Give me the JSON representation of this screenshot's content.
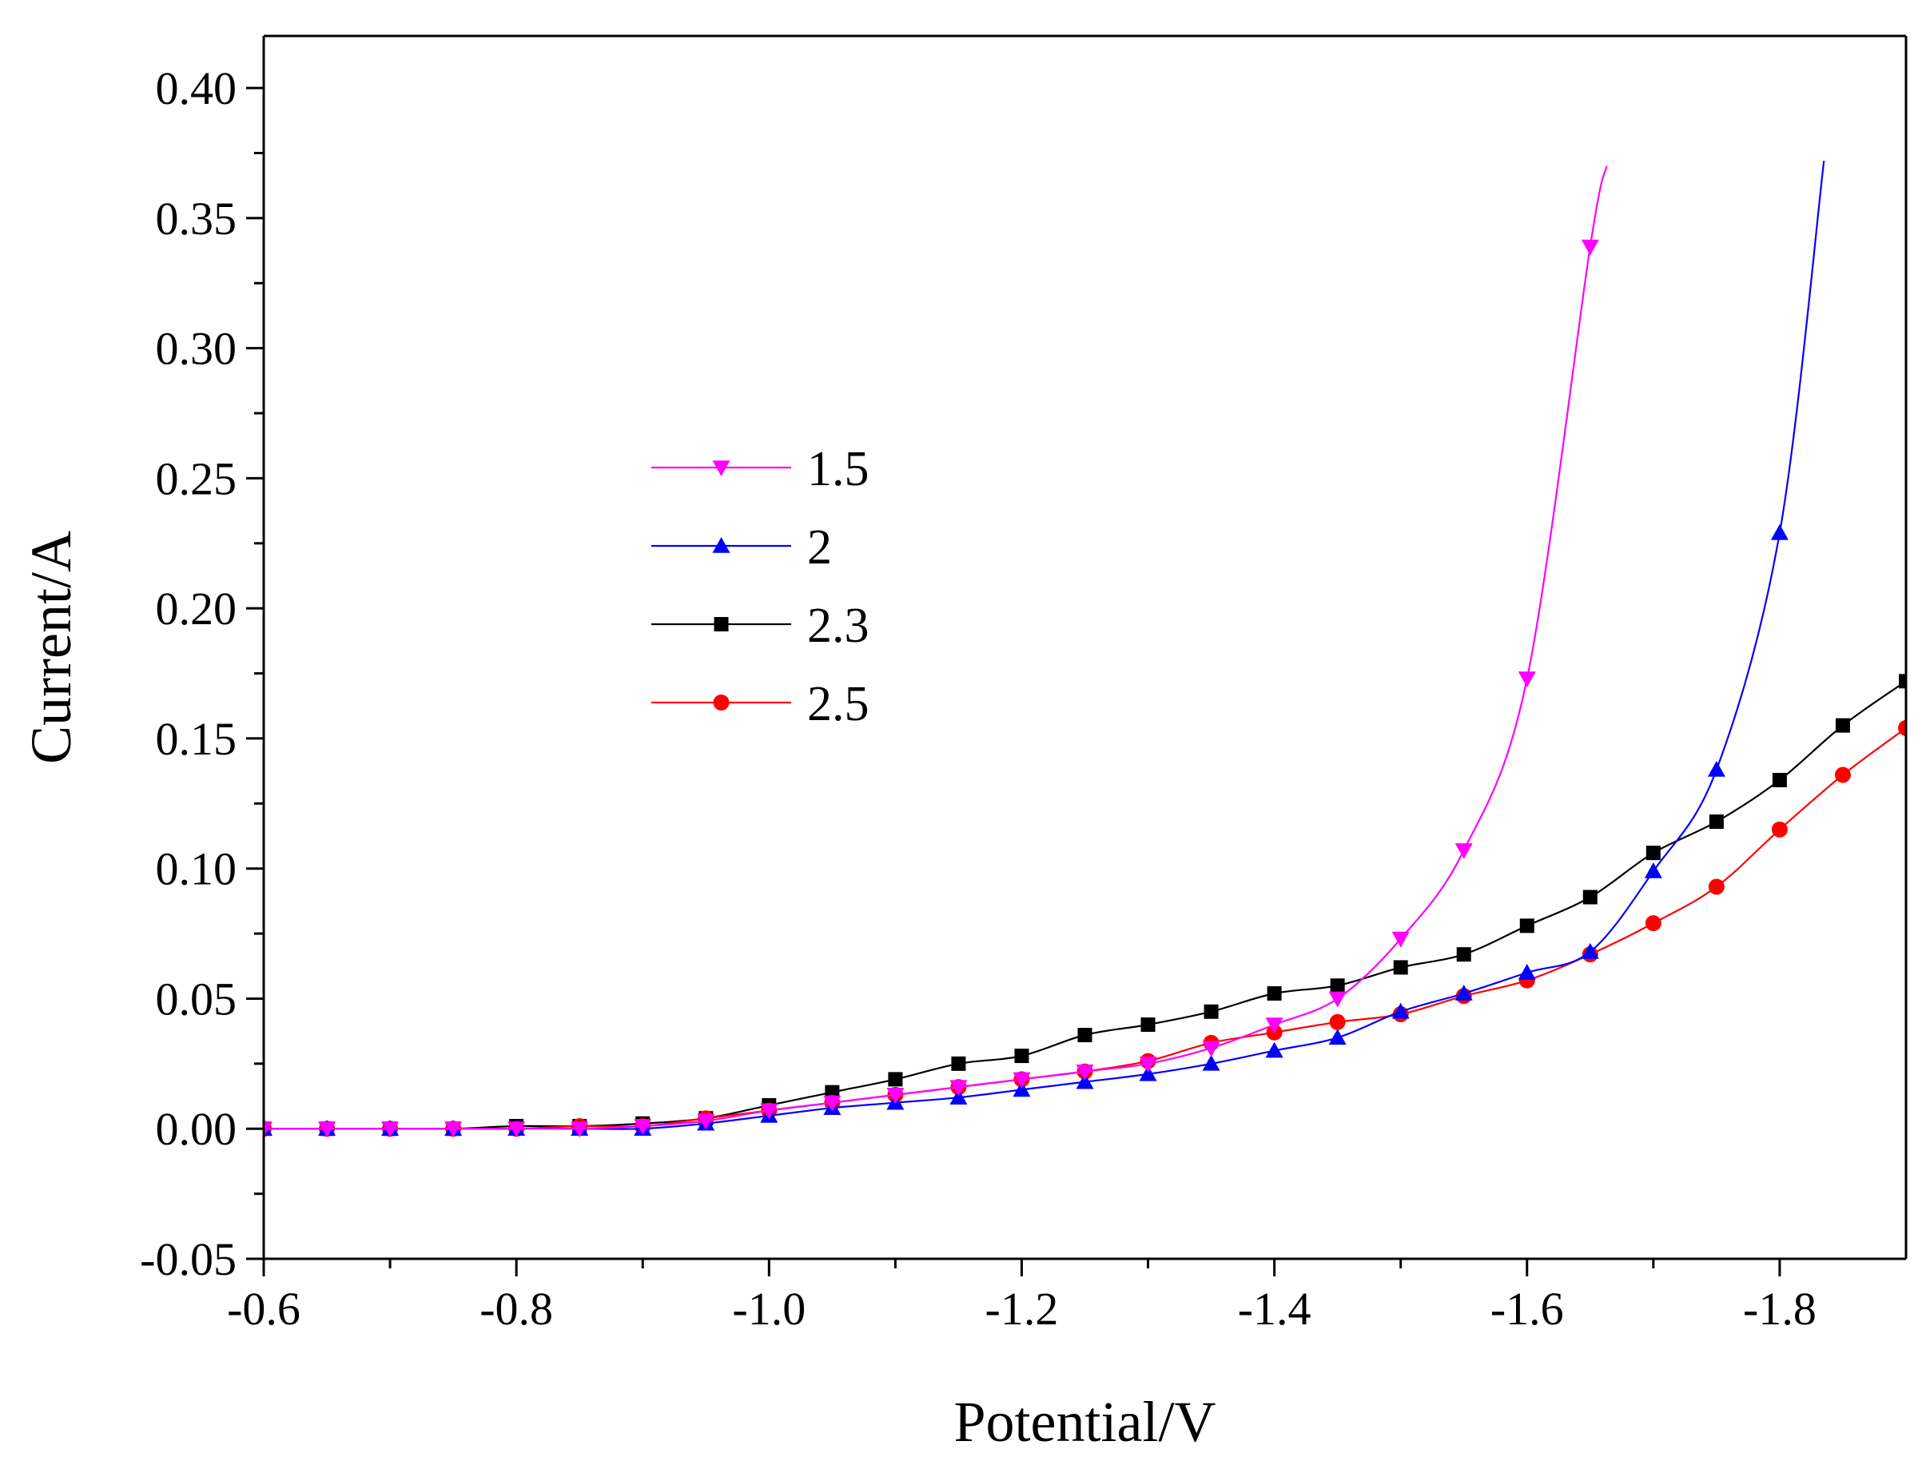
{
  "chart_data": {
    "type": "line",
    "title": "",
    "xlabel": "Potential/V",
    "ylabel": "Current/A",
    "xlim": [
      -0.6,
      -1.9
    ],
    "ylim": [
      -0.05,
      0.42
    ],
    "x_ticks": [
      -0.6,
      -0.8,
      -1.0,
      -1.2,
      -1.4,
      -1.6,
      -1.8
    ],
    "x_tick_labels": [
      "-0.6",
      "-0.8",
      "-1.0",
      "-1.2",
      "-1.4",
      "-1.6",
      "-1.8"
    ],
    "x_minor_ticks": [
      -0.7,
      -0.9,
      -1.1,
      -1.3,
      -1.5,
      -1.7
    ],
    "y_ticks": [
      -0.05,
      0.0,
      0.05,
      0.1,
      0.15,
      0.2,
      0.25,
      0.3,
      0.35,
      0.4
    ],
    "y_tick_labels": [
      "-0.05",
      "0.00",
      "0.05",
      "0.10",
      "0.15",
      "0.20",
      "0.25",
      "0.30",
      "0.35",
      "0.40"
    ],
    "y_minor_ticks": [
      -0.025,
      0.025,
      0.075,
      0.125,
      0.175,
      0.225,
      0.275,
      0.325,
      0.375
    ],
    "grid": false,
    "legend_position": "center-left",
    "series": [
      {
        "name": "1.5",
        "color": "#ff00ff",
        "marker": "triangle-down",
        "x": [
          -0.6,
          -0.65,
          -0.7,
          -0.75,
          -0.8,
          -0.85,
          -0.9,
          -0.95,
          -1.0,
          -1.05,
          -1.1,
          -1.15,
          -1.2,
          -1.25,
          -1.3,
          -1.35,
          -1.4,
          -1.45,
          -1.5,
          -1.55,
          -1.6,
          -1.65
        ],
        "y": [
          0.0,
          0.0,
          0.0,
          0.0,
          0.0,
          0.0,
          0.001,
          0.003,
          0.007,
          0.01,
          0.013,
          0.016,
          0.019,
          0.022,
          0.025,
          0.031,
          0.04,
          0.05,
          0.073,
          0.107,
          0.173,
          0.339
        ],
        "tail": [
          -1.663,
          0.37
        ]
      },
      {
        "name": "2",
        "color": "#0000ff",
        "marker": "triangle-up",
        "x": [
          -0.6,
          -0.65,
          -0.7,
          -0.75,
          -0.8,
          -0.85,
          -0.9,
          -0.95,
          -1.0,
          -1.05,
          -1.1,
          -1.15,
          -1.2,
          -1.25,
          -1.3,
          -1.35,
          -1.4,
          -1.45,
          -1.5,
          -1.55,
          -1.6,
          -1.65,
          -1.7,
          -1.75,
          -1.8
        ],
        "y": [
          0.0,
          0.0,
          0.0,
          0.0,
          0.0,
          0.0,
          0.0,
          0.002,
          0.005,
          0.008,
          0.01,
          0.012,
          0.015,
          0.018,
          0.021,
          0.025,
          0.03,
          0.035,
          0.045,
          0.052,
          0.06,
          0.068,
          0.099,
          0.138,
          0.229
        ],
        "tail": [
          -1.835,
          0.372
        ]
      },
      {
        "name": "2.3",
        "color": "#000000",
        "marker": "square",
        "x": [
          -0.6,
          -0.65,
          -0.7,
          -0.75,
          -0.8,
          -0.85,
          -0.9,
          -0.95,
          -1.0,
          -1.05,
          -1.1,
          -1.15,
          -1.2,
          -1.25,
          -1.3,
          -1.35,
          -1.4,
          -1.45,
          -1.5,
          -1.55,
          -1.6,
          -1.65,
          -1.7,
          -1.75,
          -1.8,
          -1.85,
          -1.9
        ],
        "y": [
          0.0,
          0.0,
          0.0,
          0.0,
          0.001,
          0.001,
          0.002,
          0.004,
          0.009,
          0.014,
          0.019,
          0.025,
          0.028,
          0.036,
          0.04,
          0.045,
          0.052,
          0.055,
          0.062,
          0.067,
          0.078,
          0.089,
          0.106,
          0.118,
          0.134,
          0.155,
          0.172
        ]
      },
      {
        "name": "2.5",
        "color": "#ff0000",
        "marker": "circle",
        "x": [
          -0.6,
          -0.65,
          -0.7,
          -0.75,
          -0.8,
          -0.85,
          -0.9,
          -0.95,
          -1.0,
          -1.05,
          -1.1,
          -1.15,
          -1.2,
          -1.25,
          -1.3,
          -1.35,
          -1.4,
          -1.45,
          -1.5,
          -1.55,
          -1.6,
          -1.65,
          -1.7,
          -1.75,
          -1.8,
          -1.85,
          -1.9
        ],
        "y": [
          0.0,
          0.0,
          0.0,
          0.0,
          0.0,
          0.001,
          0.001,
          0.004,
          0.007,
          0.01,
          0.013,
          0.016,
          0.019,
          0.022,
          0.026,
          0.033,
          0.037,
          0.041,
          0.044,
          0.051,
          0.057,
          0.067,
          0.079,
          0.093,
          0.115,
          0.136,
          0.154
        ]
      }
    ]
  }
}
